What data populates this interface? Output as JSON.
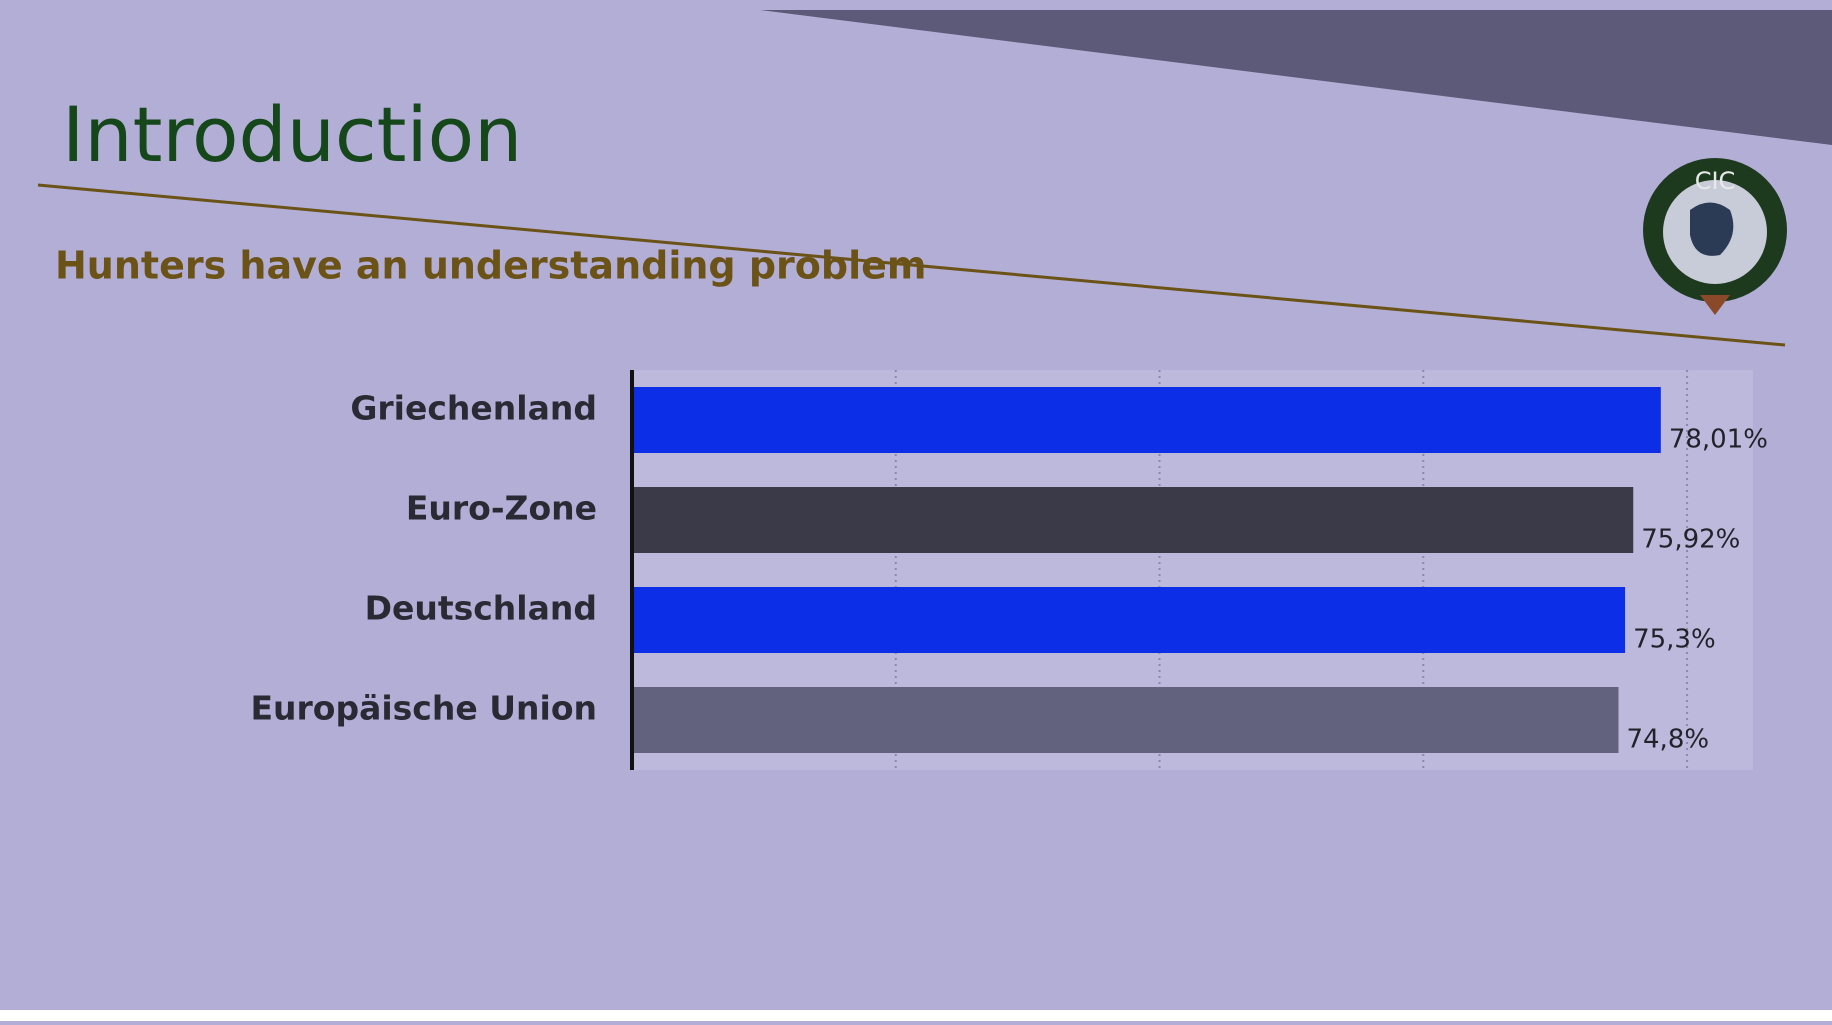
{
  "chart_data": {
    "type": "barh",
    "title": "Introduction",
    "subtitle": "Hunters have an understanding problem",
    "categories": [
      "Griechenland",
      "Euro-Zone",
      "Deutschland",
      "Europäische Union"
    ],
    "values": [
      78.01,
      75.92,
      75.3,
      74.8
    ],
    "value_labels": [
      "78,01%",
      "75,92%",
      "75,3%",
      "74,8%"
    ],
    "colors": [
      "#0b2ee6",
      "#3a3a48",
      "#0b2ee6",
      "#62627e"
    ],
    "xlim": [
      0,
      85
    ],
    "xticks": [
      20,
      40,
      60,
      80
    ],
    "grid": true
  },
  "logo": {
    "text": "CIC"
  }
}
